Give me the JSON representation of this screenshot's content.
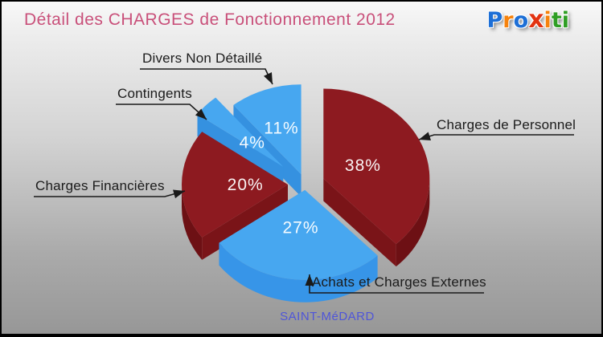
{
  "header": {
    "title": "Détail des CHARGES de Fonctionnement 2012",
    "title_color": "#c9507a",
    "logo_name": "Proxiti",
    "logo_letters": [
      {
        "ch": "P",
        "color": "#1d6fd6"
      },
      {
        "ch": "r",
        "color": "#f6820c"
      },
      {
        "ch": "o",
        "color": "#1d6fd6"
      },
      {
        "ch": "x",
        "color": "#e23210"
      },
      {
        "ch": "i",
        "color": "#f6820c"
      },
      {
        "ch": "t",
        "color": "#2f9e24"
      },
      {
        "ch": "i",
        "color": "#2f9e24"
      }
    ]
  },
  "footer": {
    "municipality": "SAINT-MéDARD",
    "color": "#4f55d8"
  },
  "chart_data": {
    "type": "pie",
    "style": "3d-exploded",
    "title": "Détail des CHARGES de Fonctionnement 2012",
    "unit": "%",
    "start_angle_deg": 0,
    "direction": "clockwise",
    "percent_label_color": "#ffffff",
    "slices": [
      {
        "label": "Charges de Personnel",
        "value": 38,
        "pct_text": "38%",
        "color_top": "#8d1a20",
        "color_side": "#6d1014",
        "color_cut": "#7a1418",
        "explode": 24,
        "label_r": 0.4
      },
      {
        "label": "Achats et Charges Externes",
        "value": 27,
        "pct_text": "27%",
        "color_top": "#47a7f0",
        "color_side": "#3795e8",
        "color_cut": "#3591e0",
        "explode": 8,
        "label_r": 0.42
      },
      {
        "label": "Charges Financières",
        "value": 20,
        "pct_text": "20%",
        "color_top": "#8d1a20",
        "color_side": "#6d1014",
        "color_cut": "#7a1418",
        "explode": 22,
        "label_r": 0.4
      },
      {
        "label": "Contingents",
        "value": 4,
        "pct_text": "4%",
        "color_top": "#47a7f0",
        "color_side": "#3795e8",
        "color_cut": "#3591e0",
        "explode": 38,
        "label_r": 0.4
      },
      {
        "label": "Divers Non Détaillé",
        "value": 11,
        "pct_text": "11%",
        "color_top": "#47a7f0",
        "color_side": "#3795e8",
        "color_cut": "#3591e0",
        "explode": 16,
        "label_r": 0.55
      }
    ]
  }
}
